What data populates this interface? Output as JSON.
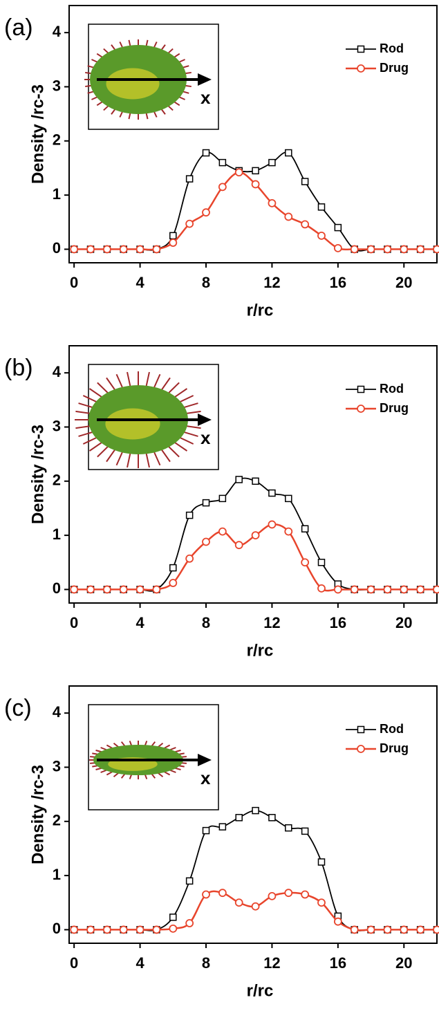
{
  "chart_data": [
    {
      "type": "line",
      "panel_label": "(a)",
      "xlabel": "r/rc",
      "ylabel": "Density /rc-3",
      "inset_label": "x",
      "x": [
        0,
        1,
        2,
        3,
        4,
        5,
        6,
        7,
        8,
        9,
        10,
        11,
        12,
        13,
        14,
        15,
        16,
        17,
        18,
        19,
        20,
        21,
        22
      ],
      "series": [
        {
          "name": "Rod",
          "color": "#000000",
          "marker": "square",
          "values": [
            0,
            0,
            0,
            0,
            0,
            0,
            0.25,
            1.3,
            1.78,
            1.6,
            1.45,
            1.45,
            1.6,
            1.78,
            1.25,
            0.78,
            0.4,
            0,
            0,
            0,
            0,
            0,
            0
          ]
        },
        {
          "name": "Drug",
          "color": "#e8452c",
          "marker": "circle",
          "values": [
            0,
            0,
            0,
            0,
            0,
            0,
            0.12,
            0.47,
            0.68,
            1.15,
            1.42,
            1.2,
            0.85,
            0.6,
            0.46,
            0.25,
            0.02,
            0,
            0,
            0,
            0,
            0,
            0
          ]
        }
      ],
      "xlim": [
        -0.3,
        22
      ],
      "ylim": [
        -0.25,
        4.5
      ],
      "xticks": [
        0,
        4,
        8,
        12,
        16,
        20
      ],
      "yticks": [
        0,
        1,
        2,
        3,
        4
      ],
      "legend": "upper right"
    },
    {
      "type": "line",
      "panel_label": "(b)",
      "xlabel": "r/rc",
      "ylabel": "Density /rc-3",
      "inset_label": "x",
      "x": [
        0,
        1,
        2,
        3,
        4,
        5,
        6,
        7,
        8,
        9,
        10,
        11,
        12,
        13,
        14,
        15,
        16,
        17,
        18,
        19,
        20,
        21,
        22
      ],
      "series": [
        {
          "name": "Rod",
          "color": "#000000",
          "marker": "square",
          "values": [
            0,
            0,
            0,
            0,
            0,
            0,
            0.4,
            1.37,
            1.6,
            1.68,
            2.03,
            2.0,
            1.78,
            1.68,
            1.12,
            0.5,
            0.1,
            0,
            0,
            0,
            0,
            0,
            0
          ]
        },
        {
          "name": "Drug",
          "color": "#e8452c",
          "marker": "circle",
          "values": [
            0,
            0,
            0,
            0,
            0,
            0,
            0.12,
            0.57,
            0.88,
            1.07,
            0.82,
            1.0,
            1.2,
            1.07,
            0.5,
            0.02,
            0,
            0,
            0,
            0,
            0,
            0,
            0
          ]
        }
      ],
      "xlim": [
        -0.3,
        22
      ],
      "ylim": [
        -0.25,
        4.5
      ],
      "xticks": [
        0,
        4,
        8,
        12,
        16,
        20
      ],
      "yticks": [
        0,
        1,
        2,
        3,
        4
      ],
      "legend": "upper right"
    },
    {
      "type": "line",
      "panel_label": "(c)",
      "xlabel": "r/rc",
      "ylabel": "Density /rc-3",
      "inset_label": "x",
      "x": [
        0,
        1,
        2,
        3,
        4,
        5,
        6,
        7,
        8,
        9,
        10,
        11,
        12,
        13,
        14,
        15,
        16,
        17,
        18,
        19,
        20,
        21,
        22
      ],
      "series": [
        {
          "name": "Rod",
          "color": "#000000",
          "marker": "square",
          "values": [
            0,
            0,
            0,
            0,
            0,
            0,
            0.23,
            0.9,
            1.83,
            1.9,
            2.07,
            2.2,
            2.07,
            1.88,
            1.82,
            1.25,
            0.25,
            0,
            0,
            0,
            0,
            0,
            0
          ]
        },
        {
          "name": "Drug",
          "color": "#e8452c",
          "marker": "circle",
          "values": [
            0,
            0,
            0,
            0,
            0,
            0,
            0.02,
            0.12,
            0.65,
            0.68,
            0.5,
            0.43,
            0.62,
            0.68,
            0.65,
            0.5,
            0.15,
            0,
            0,
            0,
            0,
            0,
            0
          ]
        }
      ],
      "xlim": [
        -0.3,
        22
      ],
      "ylim": [
        -0.25,
        4.5
      ],
      "xticks": [
        0,
        4,
        8,
        12,
        16,
        20
      ],
      "yticks": [
        0,
        1,
        2,
        3,
        4
      ],
      "legend": "upper right"
    }
  ]
}
